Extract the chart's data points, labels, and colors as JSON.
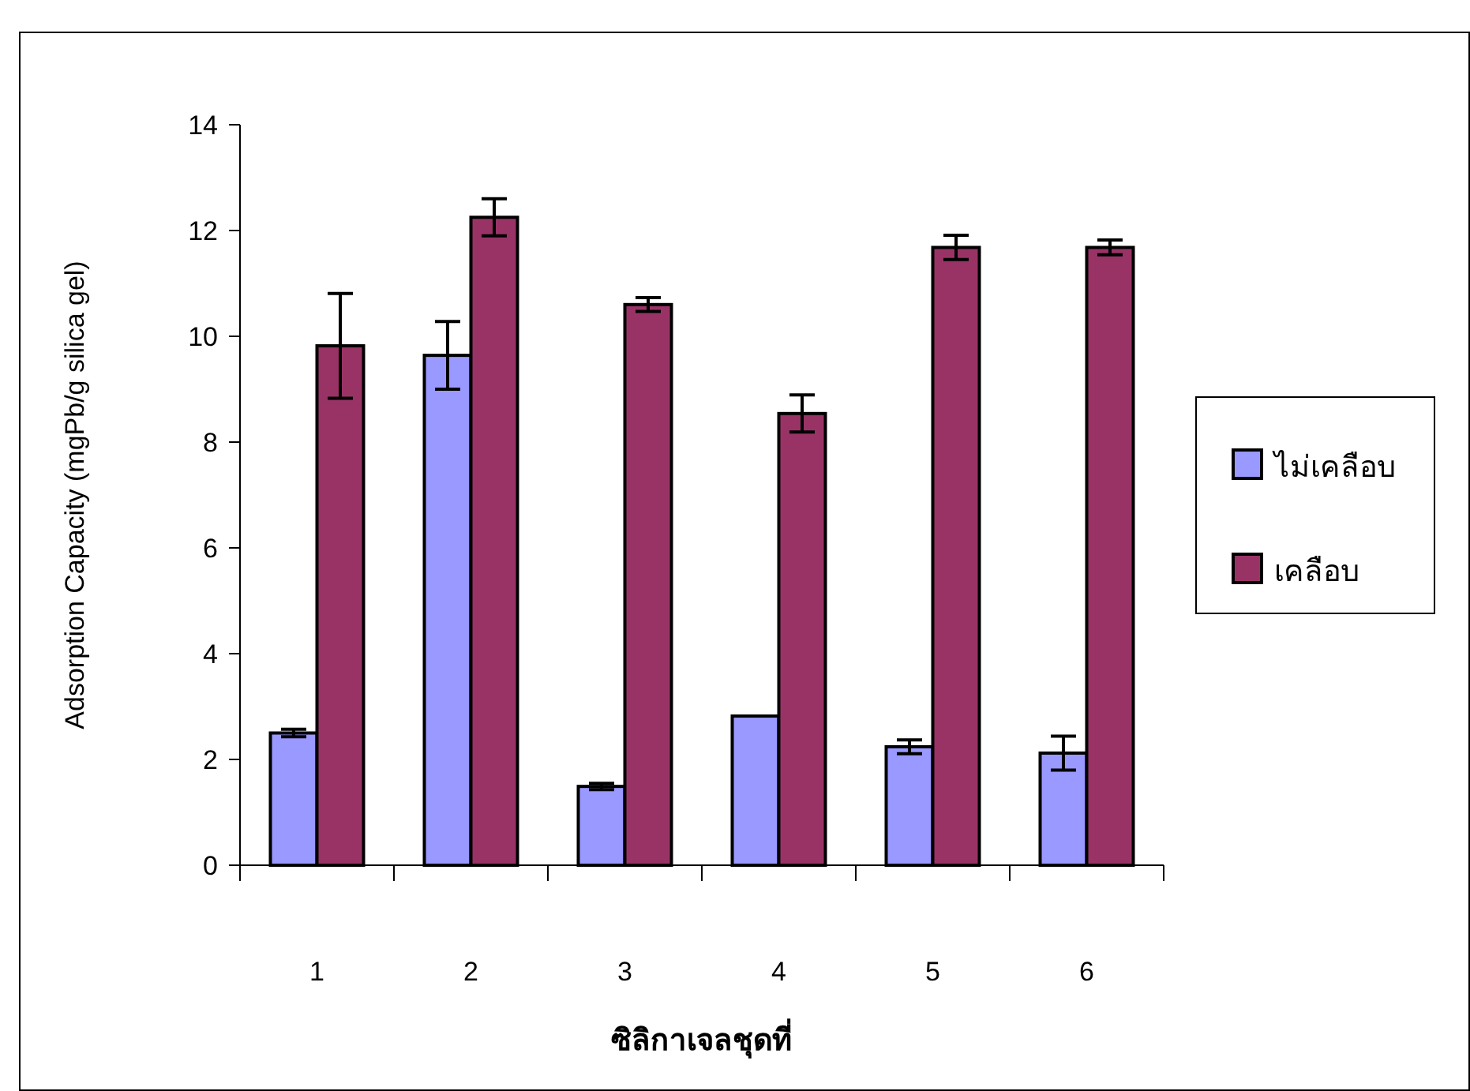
{
  "chart_data": {
    "type": "bar",
    "xlabel": "ซิลิกาเจลชุดที่",
    "ylabel": "Adsorption Capacity (mgPb/g silica gel)",
    "categories": [
      "1",
      "2",
      "3",
      "4",
      "5",
      "6"
    ],
    "series": [
      {
        "name": "ไม่เคลือบ",
        "color": "#9999ff",
        "values": [
          2.5,
          9.64,
          1.49,
          2.82,
          2.24,
          2.12
        ],
        "errors": [
          0.07,
          0.64,
          0.06,
          null,
          0.13,
          0.32
        ]
      },
      {
        "name": "เคลือบ",
        "color": "#993366",
        "values": [
          9.82,
          12.25,
          10.6,
          8.54,
          11.68,
          11.68
        ],
        "errors": [
          0.99,
          0.35,
          0.13,
          0.35,
          0.23,
          0.14
        ]
      }
    ],
    "ylim": [
      0,
      14
    ],
    "yticks": [
      0,
      2,
      4,
      6,
      8,
      10,
      12,
      14
    ],
    "legend": "right"
  }
}
